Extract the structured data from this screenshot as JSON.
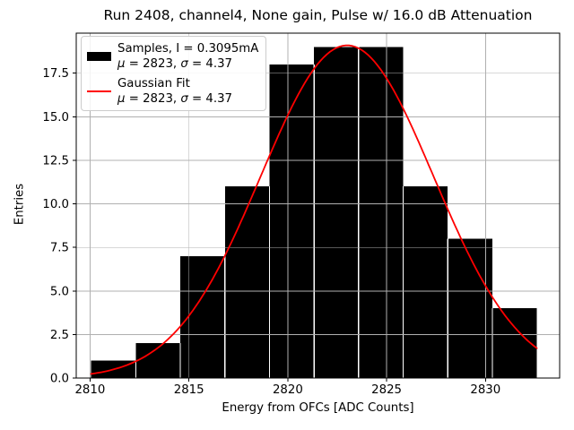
{
  "figure": {
    "title": "Run 2408, channel4, None gain, Pulse w/ 16.0 dB Attenuation",
    "xlabel": "Energy from OFCs [ADC Counts]",
    "ylabel": "Entries"
  },
  "legend": {
    "samples_title": "Samples, I = 0.3095mA",
    "fit_title": "Gaussian Fit",
    "stats": {
      "mu_sym": "μ",
      "mu_val": " = 2823, ",
      "sigma_sym": "σ",
      "sigma_val": " = 4.37"
    },
    "samples_swatch_color": "#000000",
    "fit_swatch_color": "#ff0000"
  },
  "chart_data": {
    "type": "bar",
    "subtype": "histogram",
    "title": "Run 2408, channel4, None gain, Pulse w/ 16.0 dB Attenuation",
    "xlabel": "Energy from OFCs [ADC Counts]",
    "ylabel": "Entries",
    "bin_edges": [
      2810.05,
      2812.31,
      2814.56,
      2816.82,
      2819.07,
      2821.33,
      2823.58,
      2825.84,
      2828.09,
      2830.35,
      2832.6
    ],
    "counts": [
      1,
      2,
      7,
      11,
      18,
      19,
      19,
      11,
      8,
      4
    ],
    "total_entries": 100,
    "fit": {
      "type": "gaussian",
      "mu": 2823,
      "sigma": 4.37,
      "amplitude": 19.1,
      "x_start": 2810.05,
      "x_end": 2832.6
    },
    "x_ticks": [
      "2810",
      "2815",
      "2820",
      "2825",
      "2830"
    ],
    "y_ticks": [
      "0.0",
      "2.5",
      "5.0",
      "7.5",
      "10.0",
      "12.5",
      "15.0",
      "17.5"
    ],
    "xlim": [
      2809.3,
      2833.75
    ],
    "ylim": [
      0,
      19.8
    ],
    "grid": true,
    "legend_position": "upper left",
    "bar_color": "#000000",
    "bar_edge_color": "#ffffff",
    "fit_color": "#ff0000",
    "grid_color": "#b0b0b0",
    "spine_color": "#000000",
    "background_color": "#ffffff"
  }
}
